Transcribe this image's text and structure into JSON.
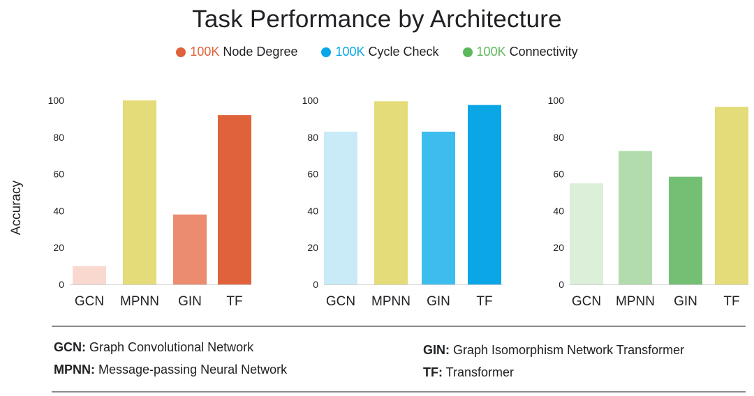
{
  "title": "Task Performance by Architecture",
  "legend": [
    {
      "prefix": "100K",
      "label": "Node Degree",
      "color": "#e0623b"
    },
    {
      "prefix": "100K",
      "label": "Cycle Check",
      "color": "#0aa6e6"
    },
    {
      "prefix": "100K",
      "label": "Connectivity",
      "color": "#5cb85c"
    }
  ],
  "y_axis_label": "Accuracy",
  "chart_data": [
    {
      "type": "bar",
      "categories": [
        "GCN",
        "MPNN",
        "GIN",
        "TF"
      ],
      "values": [
        10,
        100,
        38,
        92
      ],
      "bar_colors": [
        "#f9d9cf",
        "#e4dc78",
        "#eb8c70",
        "#e0623b"
      ],
      "ylim": [
        0,
        100
      ],
      "yticks": [
        0,
        20,
        40,
        60,
        80,
        100
      ]
    },
    {
      "type": "bar",
      "categories": [
        "GCN",
        "MPNN",
        "GIN",
        "TF"
      ],
      "values": [
        83,
        99.5,
        83,
        97.5
      ],
      "bar_colors": [
        "#c9ebf7",
        "#e4dc78",
        "#3dbdee",
        "#0aa6e6"
      ],
      "ylim": [
        0,
        100
      ],
      "yticks": [
        0,
        20,
        40,
        60,
        80,
        100
      ]
    },
    {
      "type": "bar",
      "categories": [
        "GCN",
        "MPNN",
        "GIN",
        "TF"
      ],
      "values": [
        55,
        72.5,
        58.5,
        96.5
      ],
      "bar_colors": [
        "#dcefd9",
        "#b3dcae",
        "#73bf73",
        "#e4dc78"
      ],
      "ylim": [
        0,
        100
      ],
      "yticks": [
        0,
        20,
        40,
        60,
        80,
        100
      ]
    }
  ],
  "footnotes": {
    "gcn": {
      "abbr": "GCN:",
      "text": "Graph Convolutional Network"
    },
    "mpnn": {
      "abbr": "MPNN:",
      "text": "Message-passing Neural Network"
    },
    "gin": {
      "abbr": "GIN:",
      "text": "Graph Isomorphism Network Transformer"
    },
    "tf": {
      "abbr": "TF:",
      "text": "Transformer"
    }
  }
}
